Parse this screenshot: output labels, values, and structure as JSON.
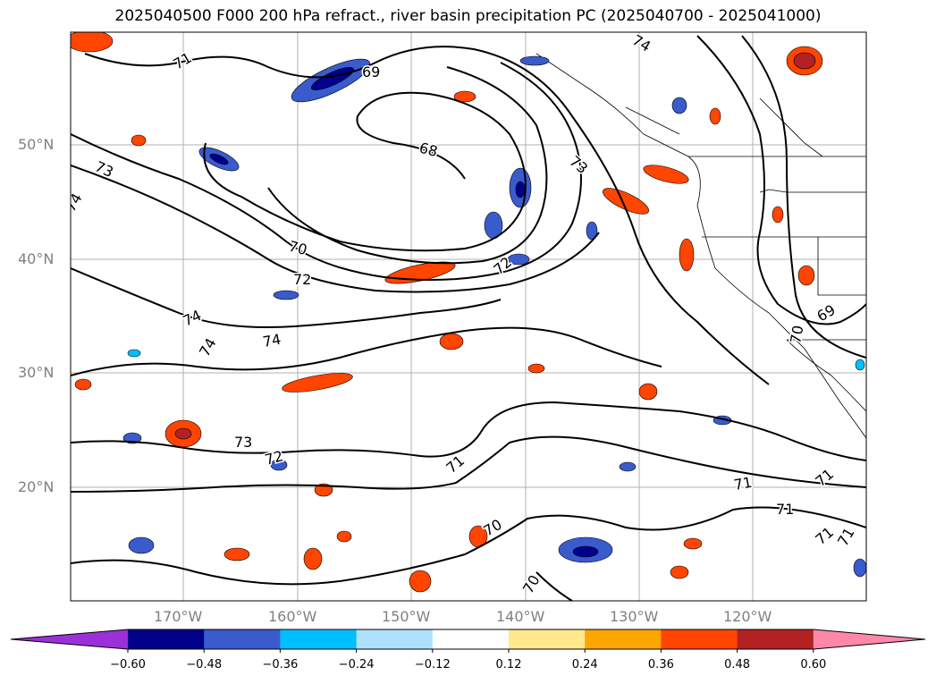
{
  "title": "2025040500 F000 200 hPa refract., river basin precipitation PC (2025040700 - 2025041000)",
  "lat_labels": [
    "50°N",
    "40°N",
    "30°N",
    "20°N"
  ],
  "lon_labels": [
    "170°W",
    "160°W",
    "150°W",
    "140°W",
    "130°W",
    "120°W"
  ],
  "contour_labels": [
    "71",
    "74",
    "69",
    "68",
    "73",
    "74",
    "70",
    "72",
    "74",
    "74",
    "74",
    "73",
    "72",
    "71",
    "70",
    "70",
    "71",
    "71",
    "71",
    "71",
    "71",
    "70",
    "69",
    "73",
    "72"
  ],
  "colorbar": {
    "ticks": [
      "−0.60",
      "−0.48",
      "−0.36",
      "−0.24",
      "−0.12",
      "0.12",
      "0.24",
      "0.36",
      "0.48",
      "0.60"
    ],
    "colors": [
      "#9b30d9",
      "#00008b",
      "#3a5bcc",
      "#00bfff",
      "#aee1fb",
      "#ffffff",
      "#ffe98c",
      "#ffa500",
      "#ff4500",
      "#b22222",
      "#ff88aa"
    ]
  }
}
